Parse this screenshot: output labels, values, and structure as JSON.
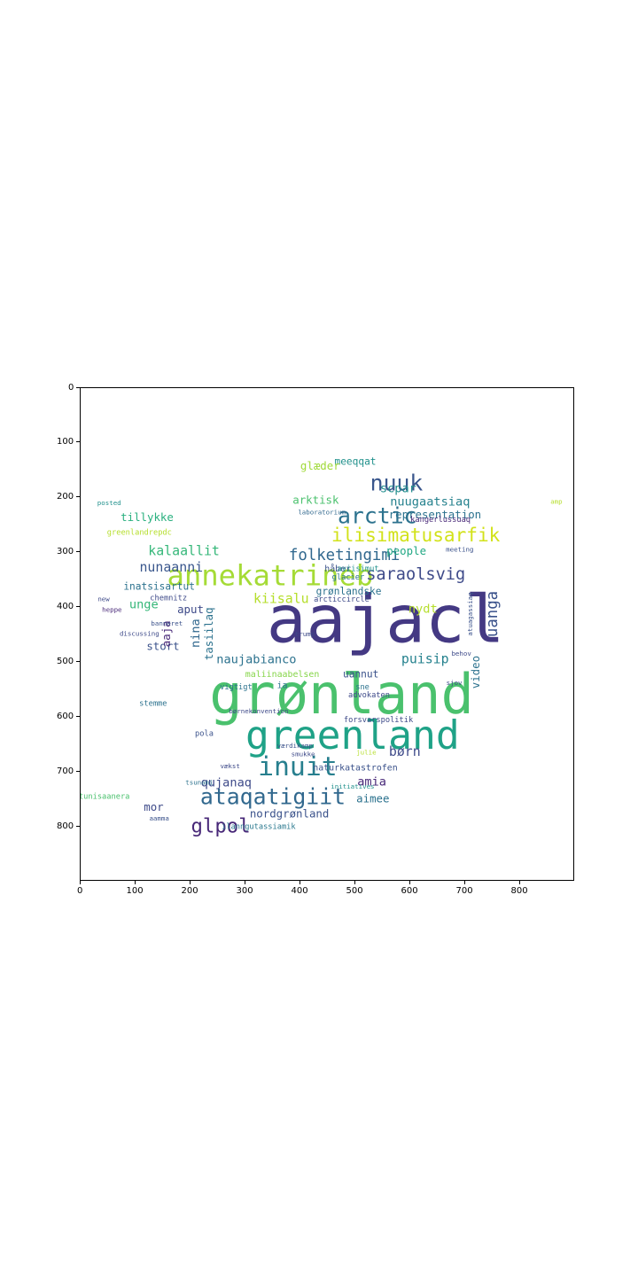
{
  "chart_data": {
    "type": "wordcloud",
    "title": "",
    "xlabel": "",
    "ylabel": "",
    "xlim": [
      0,
      900
    ],
    "ylim": [
      900,
      0
    ],
    "x_ticks": [
      0,
      100,
      200,
      300,
      400,
      500,
      600,
      700,
      800
    ],
    "y_ticks": [
      0,
      100,
      200,
      300,
      400,
      500,
      600,
      700,
      800
    ],
    "words": [
      {
        "text": "aajacl",
        "x": 555,
        "y": 430,
        "size": 120,
        "color": "#443983"
      },
      {
        "text": "grønland",
        "x": 475,
        "y": 565,
        "size": 100,
        "color": "#4ac16d"
      },
      {
        "text": "greenland",
        "x": 495,
        "y": 638,
        "size": 72,
        "color": "#1fa287"
      },
      {
        "text": "annekatrineb",
        "x": 345,
        "y": 345,
        "size": 52,
        "color": "#a5db36"
      },
      {
        "text": "inuit",
        "x": 395,
        "y": 692,
        "size": 48,
        "color": "#277f8e"
      },
      {
        "text": "ataqatigiit",
        "x": 350,
        "y": 747,
        "size": 40,
        "color": "#31688e"
      },
      {
        "text": "nuuk",
        "x": 575,
        "y": 175,
        "size": 40,
        "color": "#39568c"
      },
      {
        "text": "arctic",
        "x": 540,
        "y": 235,
        "size": 40,
        "color": "#2c728e"
      },
      {
        "text": "ilisimatusarfik",
        "x": 610,
        "y": 270,
        "size": 34,
        "color": "#d2e21b"
      },
      {
        "text": "glpol",
        "x": 255,
        "y": 800,
        "size": 36,
        "color": "#482878"
      },
      {
        "text": "saraolsvig",
        "x": 610,
        "y": 340,
        "size": 30,
        "color": "#3e4a89"
      },
      {
        "text": "folketingimi",
        "x": 480,
        "y": 305,
        "size": 28,
        "color": "#31688e"
      },
      {
        "text": "kalaallit",
        "x": 188,
        "y": 298,
        "size": 24,
        "color": "#35b779"
      },
      {
        "text": "nunaanni",
        "x": 165,
        "y": 328,
        "size": 24,
        "color": "#39568c"
      },
      {
        "text": "uanga",
        "x": 750,
        "y": 412,
        "size": 28,
        "color": "#3b528b",
        "rot": -90
      },
      {
        "text": "kiisalu",
        "x": 365,
        "y": 385,
        "size": 24,
        "color": "#b5de2b"
      },
      {
        "text": "naujabianco",
        "x": 320,
        "y": 495,
        "size": 22,
        "color": "#2c728e"
      },
      {
        "text": "puisip",
        "x": 627,
        "y": 495,
        "size": 24,
        "color": "#26828e"
      },
      {
        "text": "maliinaabelsen",
        "x": 367,
        "y": 522,
        "size": 16,
        "color": "#86d549"
      },
      {
        "text": "qujanaq",
        "x": 265,
        "y": 720,
        "size": 22,
        "color": "#3e4a89"
      },
      {
        "text": "nordgrønland",
        "x": 380,
        "y": 777,
        "size": 20,
        "color": "#3b528b"
      },
      {
        "text": "ilanngutassiamik",
        "x": 324,
        "y": 800,
        "size": 14,
        "color": "#2a788e"
      },
      {
        "text": "børn",
        "x": 590,
        "y": 664,
        "size": 24,
        "color": "#3e4a89"
      },
      {
        "text": "amia",
        "x": 530,
        "y": 718,
        "size": 22,
        "color": "#482878"
      },
      {
        "text": "aimee",
        "x": 532,
        "y": 750,
        "size": 20,
        "color": "#2c728e"
      },
      {
        "text": "naturkatastrofen",
        "x": 500,
        "y": 692,
        "size": 16,
        "color": "#3b528b"
      },
      {
        "text": "nuugaatsiaq",
        "x": 636,
        "y": 208,
        "size": 22,
        "color": "#26828e"
      },
      {
        "text": "scpar",
        "x": 578,
        "y": 183,
        "size": 22,
        "color": "#218e8d"
      },
      {
        "text": "meeqqat",
        "x": 500,
        "y": 135,
        "size": 18,
        "color": "#21918c"
      },
      {
        "text": "glæder",
        "x": 436,
        "y": 143,
        "size": 20,
        "color": "#a0da39"
      },
      {
        "text": "arktisk",
        "x": 428,
        "y": 205,
        "size": 20,
        "color": "#4ac16d"
      },
      {
        "text": "laboratorium",
        "x": 439,
        "y": 227,
        "size": 12,
        "color": "#31688e"
      },
      {
        "text": "representation",
        "x": 645,
        "y": 232,
        "size": 20,
        "color": "#2c728e"
      },
      {
        "text": "people",
        "x": 593,
        "y": 298,
        "size": 20,
        "color": "#22a884"
      },
      {
        "text": "tillykke",
        "x": 121,
        "y": 237,
        "size": 20,
        "color": "#2ab07f"
      },
      {
        "text": "greenlandrepdc",
        "x": 107,
        "y": 263,
        "size": 14,
        "color": "#b5de2b"
      },
      {
        "text": "inatsisartut",
        "x": 143,
        "y": 363,
        "size": 18,
        "color": "#2c728e"
      },
      {
        "text": "unge",
        "x": 115,
        "y": 395,
        "size": 22,
        "color": "#35b779"
      },
      {
        "text": "aput",
        "x": 200,
        "y": 405,
        "size": 20,
        "color": "#3e4a89"
      },
      {
        "text": "nina",
        "x": 210,
        "y": 447,
        "size": 22,
        "color": "#31688e",
        "rot": -90
      },
      {
        "text": "tasiilaq",
        "x": 235,
        "y": 448,
        "size": 20,
        "color": "#2c728e",
        "rot": -90
      },
      {
        "text": "grønlandske",
        "x": 488,
        "y": 372,
        "size": 18,
        "color": "#2c728e"
      },
      {
        "text": "arcticcircle",
        "x": 475,
        "y": 385,
        "size": 14,
        "color": "#3e4a89"
      },
      {
        "text": "glacier",
        "x": 487,
        "y": 345,
        "size": 14,
        "color": "#2c728e"
      },
      {
        "text": "håber",
        "x": 468,
        "y": 330,
        "size": 16,
        "color": "#3b528b"
      },
      {
        "text": "aviisimut",
        "x": 505,
        "y": 330,
        "size": 14,
        "color": "#21918c"
      },
      {
        "text": "nydt",
        "x": 623,
        "y": 403,
        "size": 22,
        "color": "#b5de2b"
      },
      {
        "text": "video",
        "x": 720,
        "y": 518,
        "size": 20,
        "color": "#2c728e",
        "rot": -90
      },
      {
        "text": "uannut",
        "x": 510,
        "y": 523,
        "size": 18,
        "color": "#3b528b"
      },
      {
        "text": "advokaten",
        "x": 525,
        "y": 560,
        "size": 14,
        "color": "#3e4a89"
      },
      {
        "text": "sne",
        "x": 513,
        "y": 545,
        "size": 14,
        "color": "#2c728e"
      },
      {
        "text": "stort",
        "x": 150,
        "y": 472,
        "size": 20,
        "color": "#3b528b"
      },
      {
        "text": "chemnitz",
        "x": 160,
        "y": 383,
        "size": 14,
        "color": "#3e4a89"
      },
      {
        "text": "aaja",
        "x": 157,
        "y": 448,
        "size": 20,
        "color": "#482878",
        "rot": -90
      },
      {
        "text": "forsvarspolitik",
        "x": 542,
        "y": 605,
        "size": 14,
        "color": "#3e4a89"
      },
      {
        "text": "vigtigt",
        "x": 283,
        "y": 545,
        "size": 14,
        "color": "#2c728e"
      },
      {
        "text": "ia",
        "x": 367,
        "y": 542,
        "size": 16,
        "color": "#2c728e"
      },
      {
        "text": "mor",
        "x": 133,
        "y": 765,
        "size": 20,
        "color": "#3e4a89"
      },
      {
        "text": "tunisaanera",
        "x": 43,
        "y": 745,
        "size": 14,
        "color": "#4ac16d"
      },
      {
        "text": "aamma",
        "x": 143,
        "y": 785,
        "size": 12,
        "color": "#3b528b"
      },
      {
        "text": "pola",
        "x": 225,
        "y": 630,
        "size": 14,
        "color": "#3b528b"
      },
      {
        "text": "tsunami",
        "x": 216,
        "y": 720,
        "size": 12,
        "color": "#2c728e"
      },
      {
        "text": "vækst",
        "x": 272,
        "y": 690,
        "size": 12,
        "color": "#3e4a89"
      },
      {
        "text": "stemme",
        "x": 132,
        "y": 575,
        "size": 14,
        "color": "#2c728e"
      },
      {
        "text": "børnekonvention",
        "x": 324,
        "y": 590,
        "size": 12,
        "color": "#3e4a89"
      },
      {
        "text": "trump",
        "x": 408,
        "y": 449,
        "size": 12,
        "color": "#3e4a89"
      },
      {
        "text": "kangerlussuaq",
        "x": 655,
        "y": 240,
        "size": 14,
        "color": "#482878"
      },
      {
        "text": "meeting",
        "x": 690,
        "y": 295,
        "size": 12,
        "color": "#3b528b"
      },
      {
        "text": "atuagassiaq",
        "x": 710,
        "y": 412,
        "size": 12,
        "color": "#3b528b",
        "rot": -90
      },
      {
        "text": "behov",
        "x": 693,
        "y": 485,
        "size": 12,
        "color": "#3e4a89"
      },
      {
        "text": "sjov",
        "x": 680,
        "y": 538,
        "size": 12,
        "color": "#3e4a89"
      },
      {
        "text": "posted",
        "x": 52,
        "y": 210,
        "size": 12,
        "color": "#21918c"
      },
      {
        "text": "new",
        "x": 42,
        "y": 385,
        "size": 12,
        "color": "#3e4a89"
      },
      {
        "text": "heppe",
        "x": 57,
        "y": 405,
        "size": 12,
        "color": "#482878"
      },
      {
        "text": "banneret",
        "x": 157,
        "y": 430,
        "size": 12,
        "color": "#3b528b"
      },
      {
        "text": "discussing",
        "x": 107,
        "y": 448,
        "size": 12,
        "color": "#3e4a89"
      },
      {
        "text": "værdikamp",
        "x": 390,
        "y": 653,
        "size": 12,
        "color": "#3b528b"
      },
      {
        "text": "smukke",
        "x": 405,
        "y": 668,
        "size": 12,
        "color": "#3e4a89"
      },
      {
        "text": "julie",
        "x": 520,
        "y": 665,
        "size": 12,
        "color": "#b5de2b"
      },
      {
        "text": "initiatives",
        "x": 495,
        "y": 727,
        "size": 12,
        "color": "#21918c"
      },
      {
        "text": "amp",
        "x": 866,
        "y": 208,
        "size": 12,
        "color": "#b5de2b"
      }
    ]
  }
}
